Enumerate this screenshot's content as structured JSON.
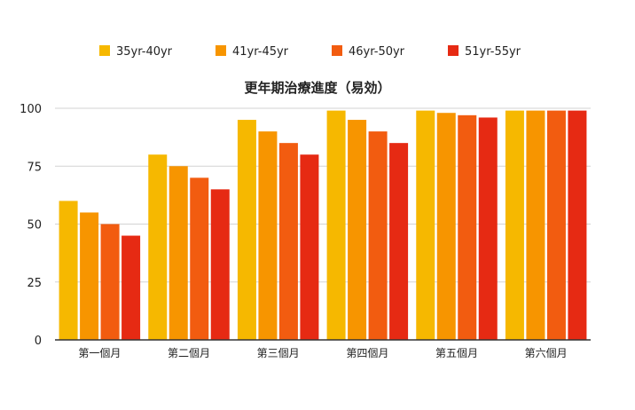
{
  "chart_data": {
    "type": "bar",
    "title": "更年期治療進度（易効）",
    "xlabel": "",
    "ylabel": "",
    "ylim": [
      0,
      100
    ],
    "yticks": [
      0,
      25,
      50,
      75,
      100
    ],
    "grid": true,
    "legend_position": "top",
    "categories": [
      "第一個月",
      "第二個月",
      "第三個月",
      "第四個月",
      "第五個月",
      "第六個月"
    ],
    "series": [
      {
        "name": "35yr-40yr",
        "color": "#F6B800",
        "values": [
          60,
          80,
          95,
          99,
          99,
          99
        ]
      },
      {
        "name": "41yr-45yr",
        "color": "#F79500",
        "values": [
          55,
          75,
          90,
          95,
          98,
          99
        ]
      },
      {
        "name": "46yr-50yr",
        "color": "#F25C10",
        "values": [
          50,
          70,
          85,
          90,
          97,
          99
        ]
      },
      {
        "name": "51yr-55yr",
        "color": "#E62A13",
        "values": [
          45,
          65,
          80,
          85,
          96,
          99
        ]
      }
    ]
  }
}
